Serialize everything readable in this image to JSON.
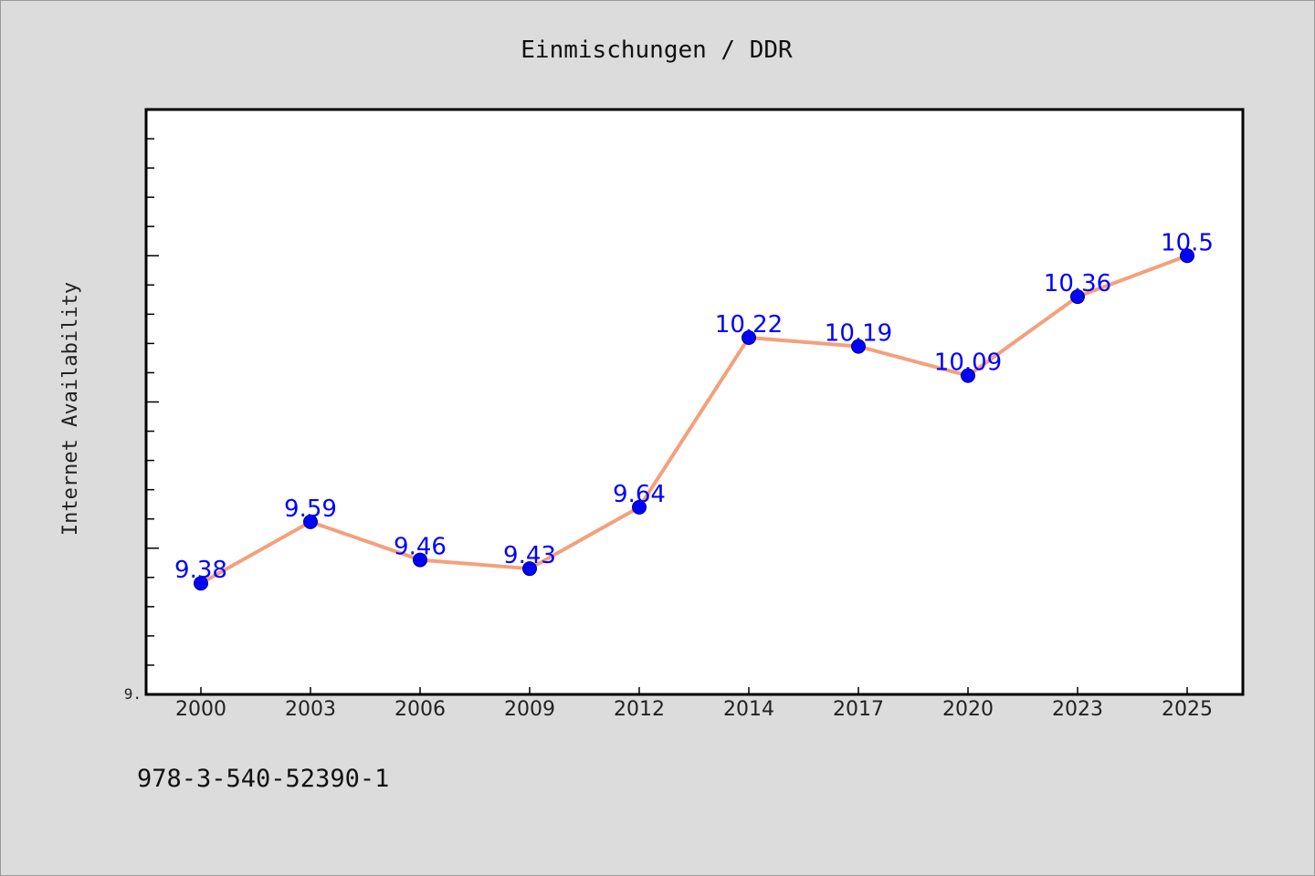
{
  "chart_data": {
    "type": "line",
    "title": "Einmischungen / DDR",
    "xlabel": "",
    "ylabel": "Internet Availability",
    "categories": [
      "2000",
      "2003",
      "2006",
      "2009",
      "2012",
      "2014",
      "2017",
      "2020",
      "2023",
      "2025"
    ],
    "series": [
      {
        "values": [
          9.38,
          9.59,
          9.46,
          9.43,
          9.64,
          10.22,
          10.19,
          10.09,
          10.36,
          10.5
        ],
        "labels": [
          "9.38",
          "9.59",
          "9.46",
          "9.43",
          "9.64",
          "10.22",
          "10.19",
          "10.09",
          "10.36",
          "10.5"
        ],
        "line_color": "#f4a07c",
        "marker_color": "#0000ff"
      }
    ],
    "ylim": [
      9.0,
      11.0
    ],
    "y_tick_label": "9.",
    "grid": false,
    "legend": "none"
  },
  "footer": {
    "isbn": "978-3-540-52390-1"
  },
  "colors": {
    "background": "#dcdcdc",
    "plot_background": "#ffffff",
    "line": "#f4a07c",
    "marker": "#0000ff",
    "data_label": "#0000ff"
  }
}
